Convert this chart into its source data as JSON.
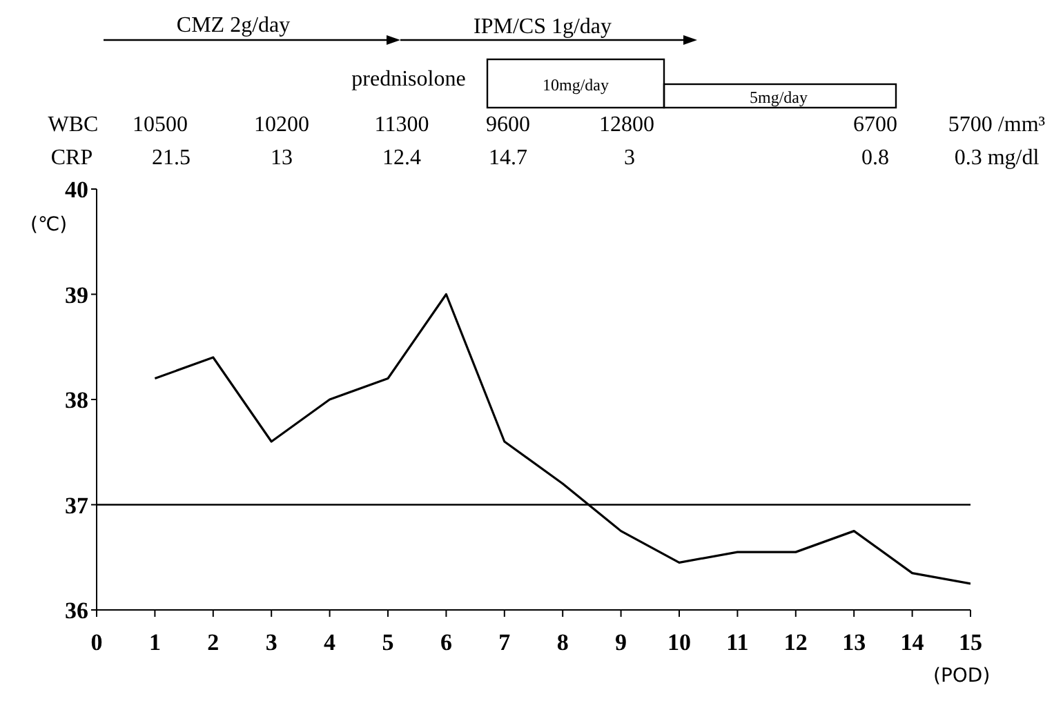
{
  "chart_data": {
    "type": "line",
    "ylabel": "(℃)",
    "xlabel": "(POD)",
    "x": [
      1,
      2,
      3,
      4,
      5,
      6,
      7,
      8,
      9,
      10,
      11,
      12,
      13,
      14,
      15
    ],
    "series": [
      {
        "color": "#000000",
        "values": [
          38.2,
          38.4,
          37.6,
          38.0,
          38.2,
          39.0,
          37.6,
          37.2,
          36.75,
          36.45,
          36.55,
          36.55,
          36.75,
          36.35,
          36.25
        ]
      }
    ],
    "xlim": [
      0,
      15
    ],
    "xticks": [
      0,
      1,
      2,
      3,
      4,
      5,
      6,
      7,
      8,
      9,
      10,
      11,
      12,
      13,
      14,
      15
    ],
    "ylim": [
      36,
      40
    ],
    "yticks": [
      36,
      37,
      38,
      39,
      40
    ],
    "ref_lines": [
      {
        "axis": "y",
        "value": 37,
        "color": "#000000"
      }
    ],
    "grid": false,
    "line_style": "solid",
    "annotations": [
      "CMZ 2g/day",
      "IPM/CS 1g/day",
      "prednisolone",
      "10mg/day",
      "5mg/day",
      "WBC",
      "10500",
      "10200",
      "11300",
      "9600",
      "12800",
      "6700",
      "5700 /mm³",
      "CRP",
      "21.5",
      "13",
      "12.4",
      "14.7",
      "3",
      "0.8",
      "0.3 mg/dl"
    ]
  }
}
